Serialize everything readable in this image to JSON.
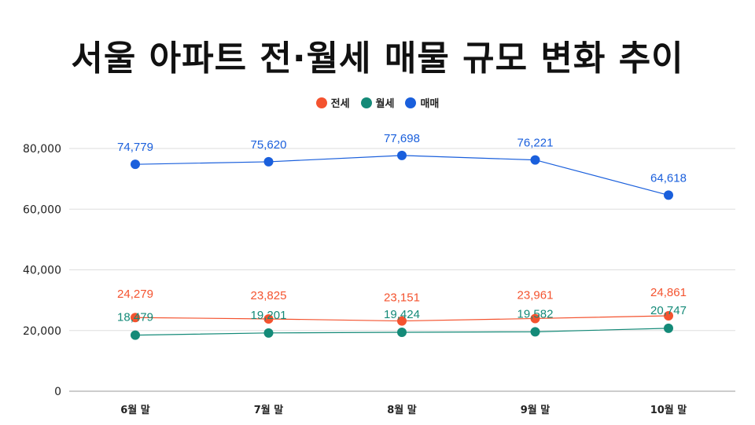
{
  "chart_data": {
    "type": "line",
    "title": "서울 아파트 전·월세 매물 규모 변화 추이",
    "categories": [
      "6월 말",
      "7월 말",
      "8월 말",
      "9월 말",
      "10월 말"
    ],
    "ylim": [
      0,
      80000
    ],
    "yticks": [
      "0",
      "20,000",
      "40,000",
      "60,000",
      "80,000"
    ],
    "grid": true,
    "legend_position": "top-center",
    "series": [
      {
        "name": "전세",
        "color": "#f4532f",
        "values": [
          24279,
          23825,
          23151,
          23961,
          24861
        ],
        "labels": [
          "24,279",
          "23,825",
          "23,151",
          "23,961",
          "24,861"
        ]
      },
      {
        "name": "월세",
        "color": "#148a78",
        "values": [
          18479,
          19201,
          19424,
          19582,
          20747
        ],
        "labels": [
          "18,479",
          "19,201",
          "19,424",
          "19,582",
          "20,747"
        ]
      },
      {
        "name": "매매",
        "color": "#1a5fdc",
        "values": [
          74779,
          75620,
          77698,
          76221,
          64618
        ],
        "labels": [
          "74,779",
          "75,620",
          "77,698",
          "76,221",
          "64,618"
        ]
      }
    ]
  }
}
